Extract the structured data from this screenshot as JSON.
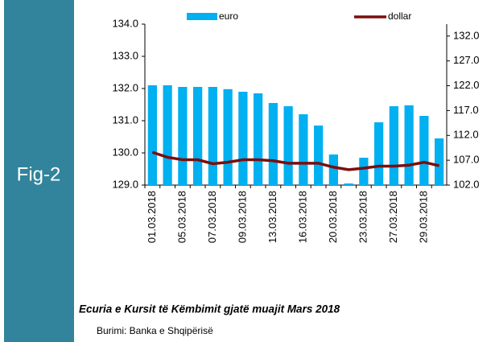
{
  "figure_label": "Fig-2",
  "caption": "Ecuria e Kursit të Këmbimit gjatë muajit Mars 2018",
  "source": "Burimi: Banka e Shqipërisë",
  "chart_data": {
    "type": "bar-line",
    "categories": [
      "01.03.2018",
      null,
      "05.03.2018",
      null,
      "07.03.2018",
      null,
      "09.03.2018",
      null,
      "13.03.2018",
      null,
      "16.03.2018",
      null,
      "20.03.2018",
      null,
      "23.03.2018",
      null,
      "27.03.2018",
      null,
      "29.03.2018",
      null
    ],
    "series": [
      {
        "name": "euro",
        "color": "#00b0f0",
        "kind": "bar",
        "values": [
          132.1,
          132.1,
          132.05,
          132.05,
          132.05,
          131.98,
          131.9,
          131.85,
          131.55,
          131.45,
          131.2,
          130.85,
          129.95,
          129.05,
          129.85,
          130.95,
          131.45,
          131.48,
          131.15,
          130.45
        ]
      },
      {
        "name": "dollar",
        "color": "#7b0e0e",
        "kind": "line",
        "axis": "y2",
        "values": [
          108.6,
          107.6,
          107.1,
          107.1,
          106.3,
          106.6,
          107.1,
          107.1,
          106.9,
          106.4,
          106.4,
          106.4,
          105.6,
          105.1,
          105.4,
          105.8,
          105.8,
          106.0,
          106.6,
          105.9
        ]
      }
    ],
    "ylim": [
      129,
      134
    ],
    "yticks": [
      {
        "value": 129,
        "label": "129.0"
      },
      {
        "value": 130,
        "label": "130.0"
      },
      {
        "value": 131,
        "label": "131.0"
      },
      {
        "value": 132,
        "label": "132.0"
      },
      {
        "value": 133,
        "label": "133.0"
      },
      {
        "value": 134,
        "label": "134.0"
      }
    ],
    "y2lim": [
      102,
      134.4
    ],
    "y2ticks": [
      {
        "value": 102,
        "label": "102.0"
      },
      {
        "value": 107,
        "label": "107.0"
      },
      {
        "value": 112,
        "label": "112.0"
      },
      {
        "value": 117,
        "label": "117.0"
      },
      {
        "value": 122,
        "label": "122.0"
      },
      {
        "value": 127,
        "label": "127.0"
      },
      {
        "value": 132,
        "label": "132.0"
      }
    ]
  }
}
